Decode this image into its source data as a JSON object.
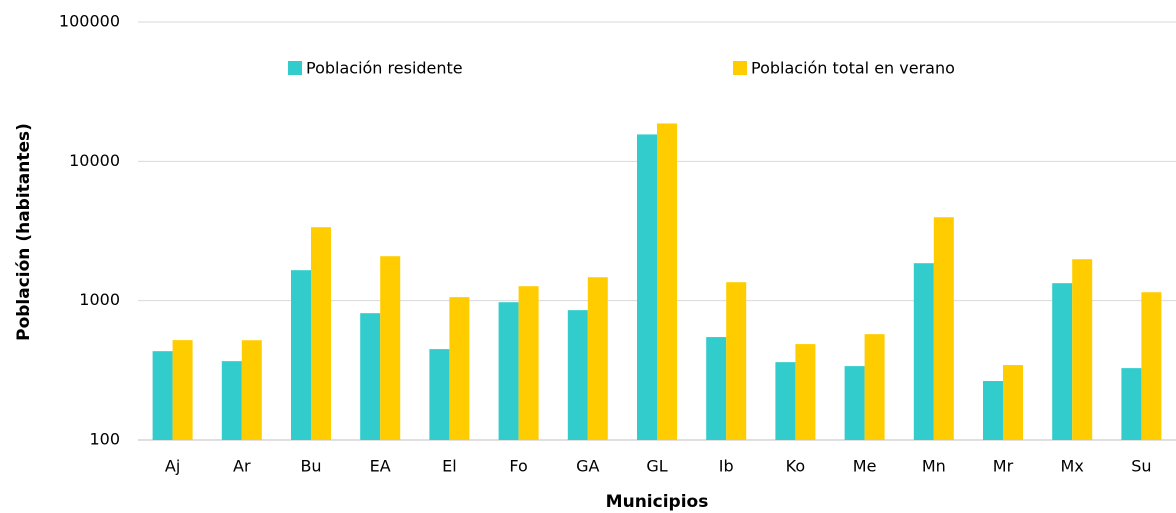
{
  "chart_data": {
    "type": "bar",
    "y_label": "Población (habitantes)",
    "x_label": "Municipios",
    "categories": [
      "Aj",
      "Ar",
      "Bu",
      "EA",
      "El",
      "Fo",
      "GA",
      "GL",
      "Ib",
      "Ko",
      "Me",
      "Mn",
      "Mr",
      "Mx",
      "Su"
    ],
    "series": [
      {
        "name": "Población residente",
        "color": "#33cccc",
        "values": [
          434,
          368,
          1655,
          813,
          449,
          975,
          855,
          15600,
          548,
          362,
          339,
          1857,
          265,
          1335,
          328
        ]
      },
      {
        "name": "Población total en verano",
        "color": "#ffcc00",
        "values": [
          521,
          520,
          3365,
          2085,
          1060,
          1270,
          1473,
          18700,
          1357,
          488,
          575,
          3970,
          345,
          1983,
          1150
        ]
      }
    ],
    "log_scale": true,
    "ylim": [
      100,
      100000
    ],
    "yticks": [
      100,
      1000,
      10000,
      100000
    ],
    "grid": true
  }
}
